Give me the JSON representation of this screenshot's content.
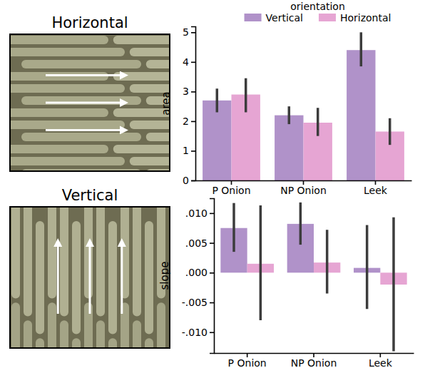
{
  "images": [
    {
      "title": "Horizontal"
    },
    {
      "title": "Vertical"
    }
  ],
  "chart_data": [
    {
      "type": "bar",
      "y_label": "area",
      "legend": "top",
      "legend_title": "orientation",
      "categories": [
        "P Onion",
        "NP Onion",
        "Leek"
      ],
      "series": [
        {
          "name": "Vertical",
          "color": "#b092c9",
          "values": [
            2.7,
            2.2,
            4.4
          ],
          "error_low": [
            2.3,
            1.9,
            3.85
          ],
          "error_high": [
            3.1,
            2.5,
            5.0
          ]
        },
        {
          "name": "Horizontal",
          "color": "#e6a5d3",
          "values": [
            2.9,
            1.95,
            1.65
          ],
          "error_low": [
            2.3,
            1.5,
            1.2
          ],
          "error_high": [
            3.45,
            2.45,
            2.1
          ]
        }
      ],
      "ylim": [
        0,
        5.2
      ],
      "yticks": [
        0,
        1,
        2,
        3,
        4,
        5
      ]
    },
    {
      "type": "bar",
      "y_label": "slope",
      "categories": [
        "P Onion",
        "NP Onion",
        "Leek"
      ],
      "series": [
        {
          "color": "#b092c9",
          "values": [
            0.0075,
            0.0082,
            0.0008
          ],
          "error_low": [
            0.0035,
            0.0047,
            -0.0061
          ],
          "error_high": [
            0.0117,
            0.0118,
            0.008
          ]
        },
        {
          "color": "#e6a5d3",
          "values": [
            0.0015,
            0.0017,
            -0.002
          ],
          "error_low": [
            -0.008,
            -0.0035,
            -0.0132
          ],
          "error_high": [
            0.0113,
            0.0072,
            0.0093
          ]
        }
      ],
      "ylim": [
        -0.0135,
        0.0125
      ],
      "yticks": [
        {
          "value": -0.01,
          "label": "-.010"
        },
        {
          "value": -0.005,
          "label": "-.005"
        },
        {
          "value": 0,
          "label": ".000"
        },
        {
          "value": 0.005,
          "label": ".005"
        },
        {
          "value": 0.01,
          "label": ".010"
        }
      ]
    }
  ]
}
